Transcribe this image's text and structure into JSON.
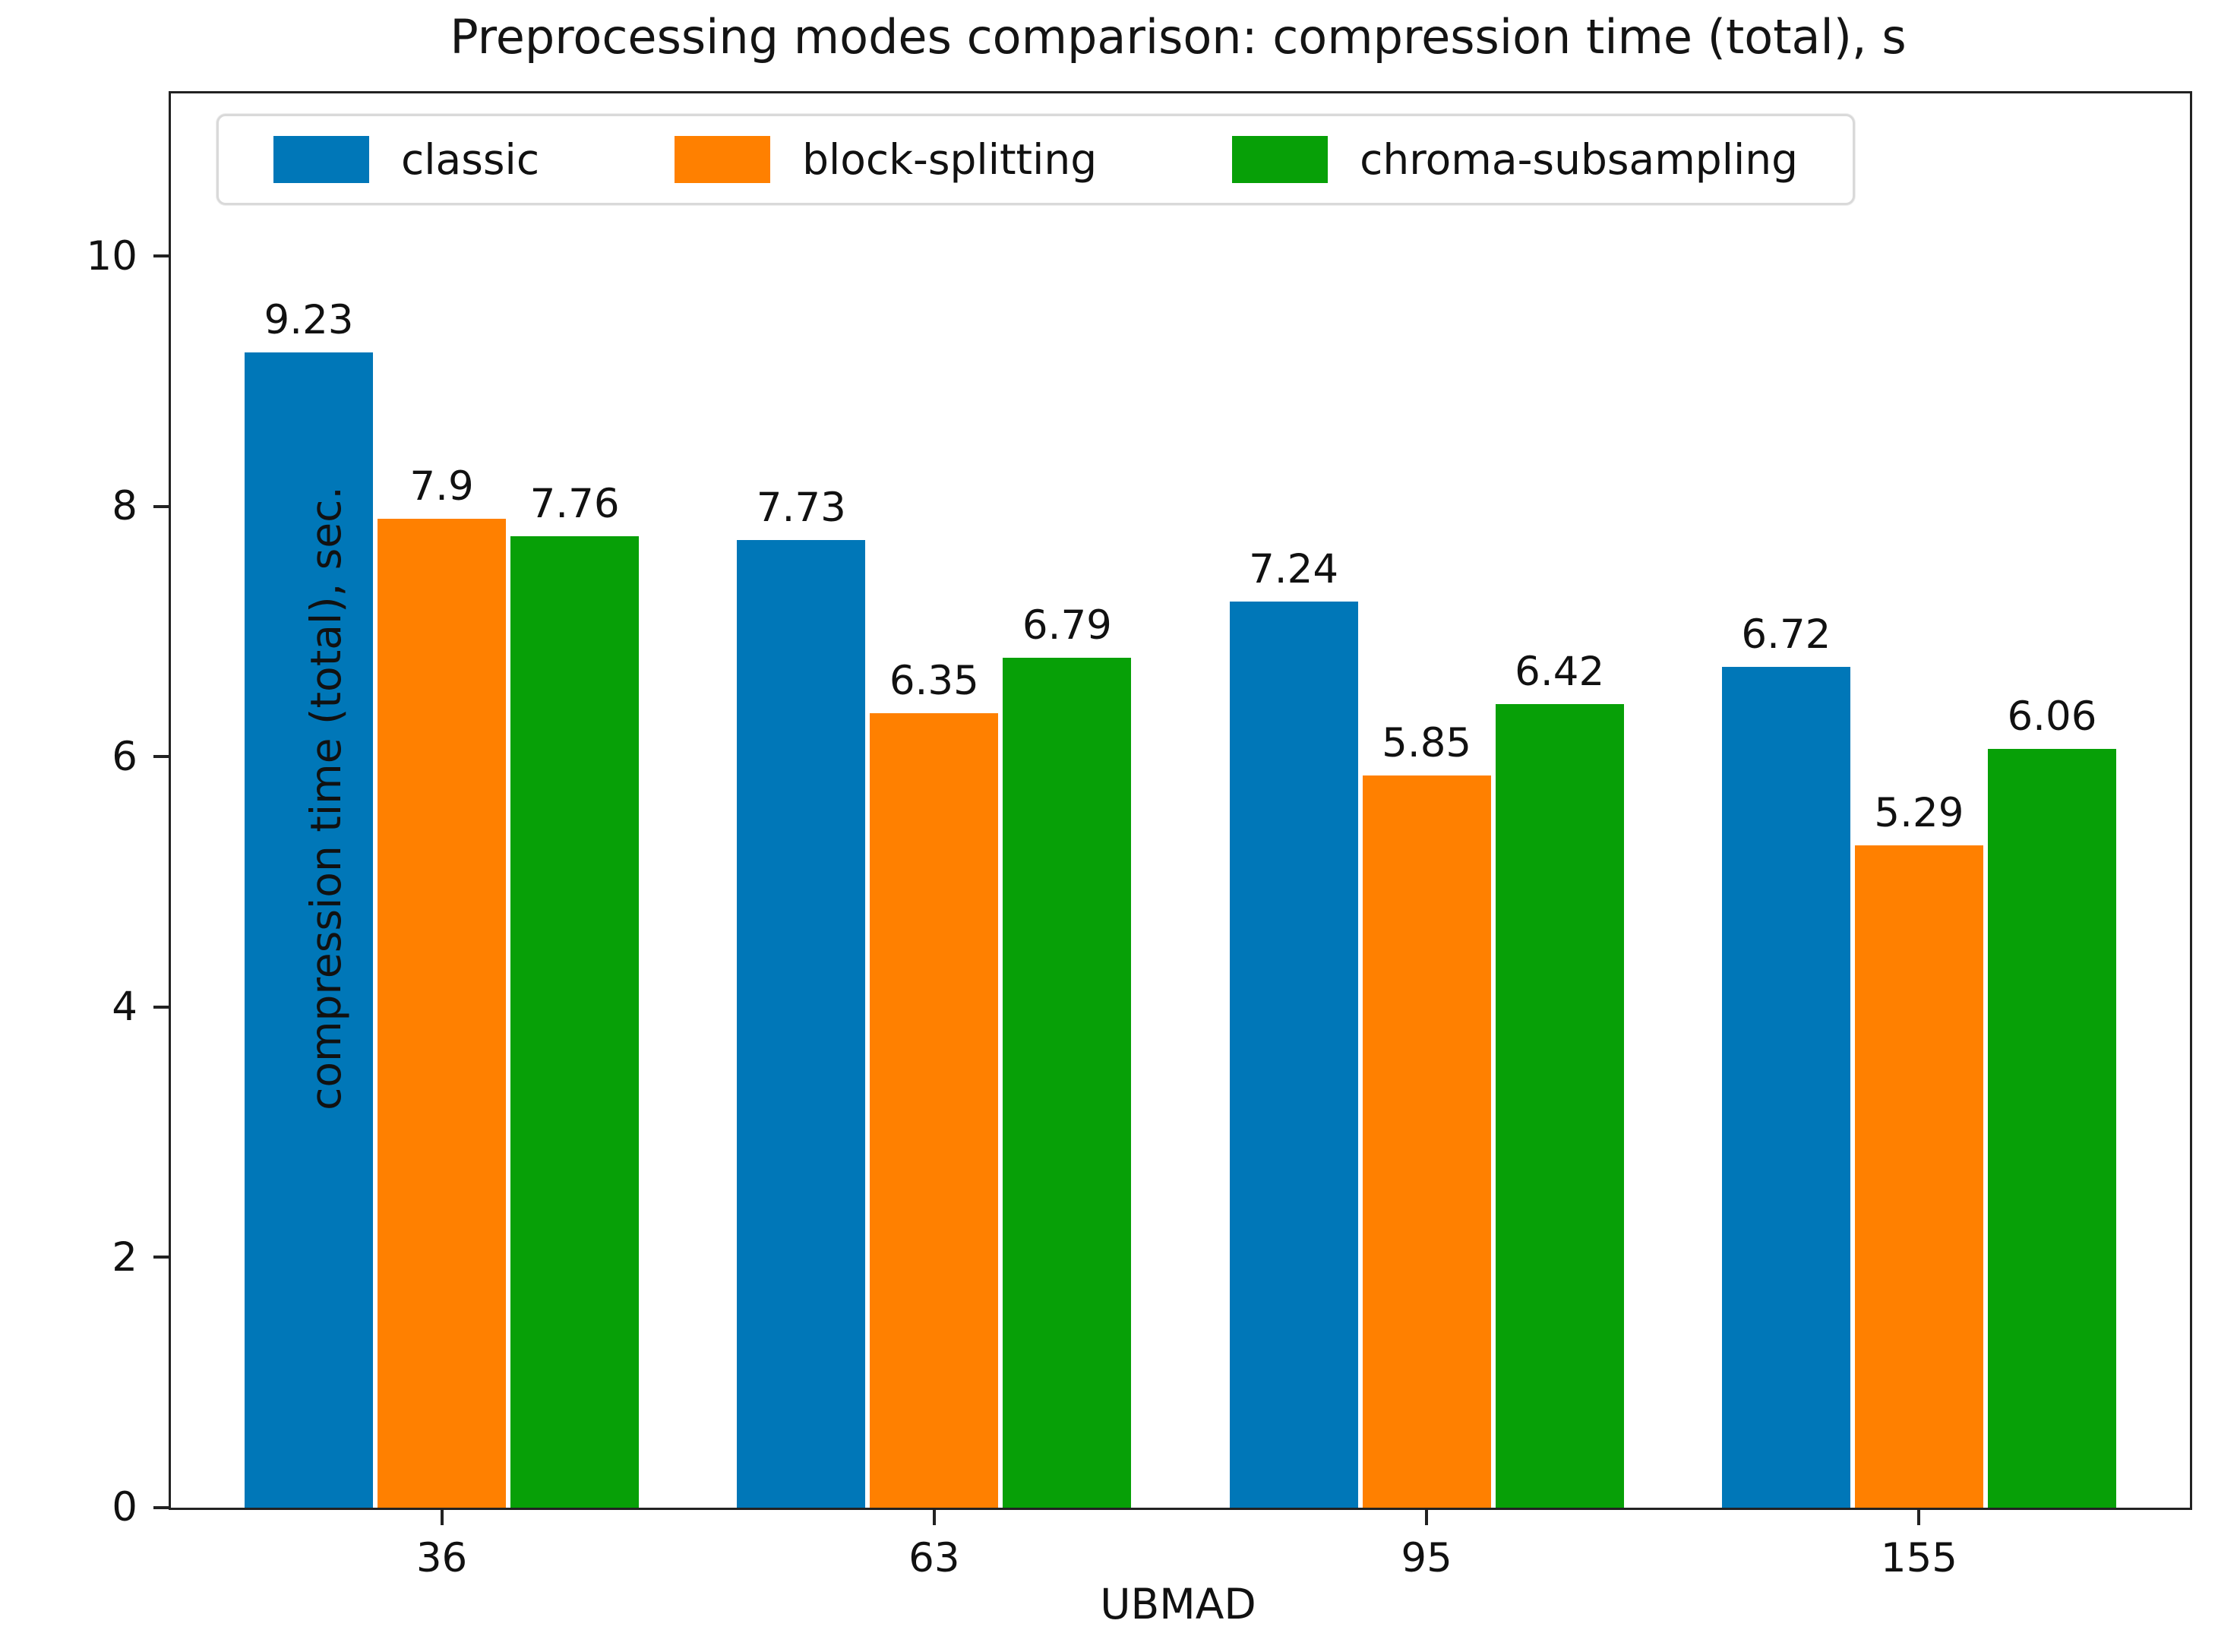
{
  "chart_data": {
    "type": "bar",
    "title": "Preprocessing modes comparison: compression time (total), s",
    "xlabel": "UBMAD",
    "ylabel": "compression time (total), sec.",
    "categories": [
      "36",
      "63",
      "95",
      "155"
    ],
    "series": [
      {
        "name": "classic",
        "color": "#0077b8",
        "values": [
          9.23,
          7.73,
          7.24,
          6.72
        ]
      },
      {
        "name": "block-splitting",
        "color": "#ff8000",
        "values": [
          7.9,
          6.35,
          5.85,
          5.29
        ]
      },
      {
        "name": "chroma-subsampling",
        "color": "#07a007",
        "values": [
          7.76,
          6.79,
          6.42,
          6.06
        ]
      }
    ],
    "bar_value_labels": [
      [
        "9.23",
        "7.73",
        "7.24",
        "6.72"
      ],
      [
        "7.9",
        "6.35",
        "5.85",
        "5.29"
      ],
      [
        "7.76",
        "6.79",
        "6.42",
        "6.06"
      ]
    ],
    "ylim": [
      0,
      11.3
    ],
    "yticks": [
      "0",
      "2",
      "4",
      "6",
      "8",
      "10"
    ],
    "grid": false,
    "legend_position": "upper center, inside plot, horizontal"
  }
}
